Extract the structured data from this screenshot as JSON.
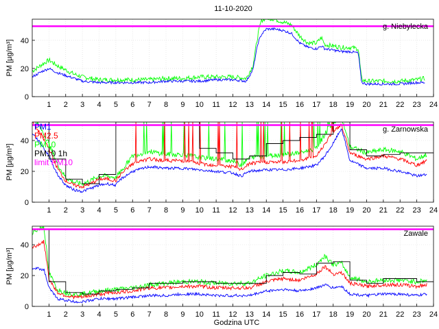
{
  "title": "11-10-2020",
  "xlabel": "Godzina UTC",
  "ylabel": "PM [µg/m³]",
  "colors": {
    "pm1": "#0000ff",
    "pm25": "#ff0000",
    "pm10": "#00ff00",
    "pm10_1h": "#000000",
    "limit": "#ff00ff"
  },
  "chart_data": [
    {
      "type": "line",
      "station": "g. Niebylecka",
      "xlim": [
        0,
        24
      ],
      "ylim": [
        0,
        55
      ],
      "xticks": [
        1,
        2,
        3,
        4,
        5,
        6,
        7,
        8,
        9,
        10,
        11,
        12,
        13,
        14,
        15,
        16,
        17,
        18,
        19,
        20,
        21,
        22,
        23,
        24
      ],
      "yticks": [
        0,
        20,
        40
      ],
      "limit_pm10": 50,
      "series": [
        {
          "name": "PM1",
          "key": "pm1",
          "x": [
            0,
            0.6,
            1,
            1.5,
            2,
            2.5,
            3,
            4,
            5,
            6,
            7,
            8,
            9,
            10,
            11,
            12,
            12.8,
            13.2,
            13.5,
            13.7,
            14,
            14.5,
            15,
            15.5,
            16,
            16.5,
            17,
            17.3,
            17.5,
            18,
            18.5,
            19,
            19.5,
            19.7,
            20,
            21,
            22,
            23,
            23.5
          ],
          "y": [
            14,
            18,
            20,
            17,
            15,
            13,
            11,
            10,
            10,
            10,
            10,
            11,
            11,
            11,
            12,
            12,
            11,
            19,
            38,
            44,
            48,
            48,
            47,
            45,
            38,
            35,
            34,
            36,
            34,
            33,
            32,
            32,
            31,
            10,
            9,
            9,
            9,
            10,
            10
          ]
        },
        {
          "name": "PM10",
          "key": "pm10",
          "x": [
            0,
            0.6,
            1,
            1.5,
            2,
            2.5,
            3,
            4,
            5,
            6,
            7,
            8,
            9,
            10,
            11,
            12,
            12.8,
            13.2,
            13.5,
            13.7,
            14,
            14.5,
            15,
            15.5,
            16,
            16.5,
            17,
            17.3,
            17.5,
            18,
            18.5,
            19,
            19.5,
            19.7,
            20,
            21,
            22,
            23,
            23.5
          ],
          "y": [
            18,
            23,
            26,
            22,
            19,
            16,
            14,
            12,
            12,
            12,
            12,
            13,
            13,
            14,
            14,
            14,
            13,
            22,
            44,
            54,
            56,
            55,
            53,
            51,
            43,
            38,
            38,
            42,
            37,
            36,
            35,
            35,
            34,
            12,
            11,
            11,
            11,
            12,
            13
          ]
        }
      ]
    },
    {
      "type": "line",
      "station": "g. Zarnowska",
      "xlim": [
        0,
        24
      ],
      "ylim": [
        0,
        52
      ],
      "xticks": [
        1,
        2,
        3,
        4,
        5,
        6,
        7,
        8,
        9,
        10,
        11,
        12,
        13,
        14,
        15,
        16,
        17,
        18,
        19,
        20,
        21,
        22,
        23,
        24
      ],
      "yticks": [
        0,
        20,
        40
      ],
      "limit_pm10": 50,
      "legend": [
        "PM1",
        "PM2.5",
        "PM10",
        "PM10 1h",
        "limit PM10"
      ],
      "series": [
        {
          "name": "PM1",
          "key": "pm1",
          "x": [
            0,
            0.5,
            1,
            1.5,
            2,
            2.5,
            3,
            3.5,
            4,
            4.5,
            5,
            5.3,
            6,
            7,
            8,
            9,
            10,
            11,
            12,
            12.5,
            13,
            14,
            15,
            16,
            17,
            17.5,
            18,
            18.5,
            19,
            20,
            21,
            22,
            23,
            23.6
          ],
          "y": [
            45,
            38,
            30,
            18,
            11,
            8,
            7,
            9,
            11,
            12,
            11,
            15,
            20,
            23,
            22,
            22,
            21,
            20,
            19,
            17,
            20,
            21,
            21,
            22,
            24,
            30,
            38,
            48,
            27,
            22,
            22,
            20,
            17,
            18
          ]
        },
        {
          "name": "PM2.5",
          "key": "pm25",
          "x": [
            0,
            0.5,
            1,
            1.5,
            2,
            2.5,
            3,
            3.5,
            4,
            4.5,
            5,
            5.3,
            6,
            7,
            8,
            9,
            10,
            11,
            12,
            12.5,
            13,
            14,
            15,
            16,
            17,
            17.5,
            18,
            18.5,
            19,
            20,
            21,
            22,
            23,
            23.6
          ],
          "y": [
            52,
            44,
            35,
            22,
            14,
            11,
            10,
            12,
            15,
            15,
            14,
            18,
            25,
            28,
            27,
            27,
            25,
            24,
            23,
            21,
            25,
            26,
            26,
            27,
            30,
            38,
            46,
            50,
            32,
            28,
            30,
            28,
            24,
            27
          ]
        },
        {
          "name": "PM10",
          "key": "pm10",
          "x": [
            0,
            0.5,
            1,
            1.5,
            2,
            2.5,
            3,
            3.5,
            4,
            4.5,
            5,
            5.3,
            6,
            7,
            8,
            9,
            10,
            11,
            12,
            12.5,
            13,
            14,
            15,
            16,
            17,
            17.5,
            18,
            18.5,
            19,
            20,
            21,
            22,
            23,
            23.6
          ],
          "y": [
            56,
            48,
            38,
            25,
            16,
            13,
            12,
            14,
            17,
            17,
            16,
            20,
            30,
            33,
            31,
            31,
            29,
            28,
            27,
            24,
            29,
            30,
            31,
            32,
            35,
            44,
            52,
            55,
            36,
            32,
            34,
            33,
            28,
            31
          ]
        },
        {
          "name": "PM10 1h",
          "key": "pm10_1h",
          "step": true,
          "x": [
            0,
            1,
            2,
            3,
            4,
            5,
            6,
            7,
            8,
            9,
            10,
            11,
            12,
            13,
            14,
            15,
            16,
            17,
            18,
            19,
            20,
            21,
            22,
            23
          ],
          "y": [
            52,
            28,
            15,
            12,
            18,
            52,
            52,
            52,
            52,
            52,
            35,
            32,
            28,
            30,
            38,
            40,
            42,
            44,
            52,
            34,
            30,
            31,
            32,
            32
          ]
        }
      ]
    },
    {
      "type": "line",
      "station": "Zawale",
      "xlim": [
        0,
        24
      ],
      "ylim": [
        0,
        52
      ],
      "xticks": [
        1,
        2,
        3,
        4,
        5,
        6,
        7,
        8,
        9,
        10,
        11,
        12,
        13,
        14,
        15,
        16,
        17,
        18,
        19,
        20,
        21,
        22,
        23,
        24
      ],
      "yticks": [
        0,
        20,
        40
      ],
      "limit_pm10": 50,
      "series": [
        {
          "name": "PM1",
          "key": "pm1",
          "x": [
            0,
            0.7,
            1,
            1.5,
            2,
            2.5,
            3,
            3.5,
            4,
            5,
            6,
            7,
            8,
            9,
            10,
            11,
            12,
            13,
            14,
            15,
            16,
            17,
            17.5,
            18,
            18.5,
            19,
            20,
            21,
            22,
            23,
            23.6
          ],
          "y": [
            25,
            24,
            12,
            5,
            4,
            3,
            3,
            4,
            5,
            5,
            6,
            7,
            7,
            8,
            8,
            7,
            7,
            7,
            10,
            11,
            10,
            12,
            14,
            12,
            13,
            8,
            7,
            8,
            8,
            7,
            8
          ]
        },
        {
          "name": "PM2.5",
          "key": "pm25",
          "x": [
            0,
            0.7,
            1,
            1.5,
            2,
            2.5,
            3,
            3.5,
            4,
            5,
            6,
            7,
            8,
            9,
            10,
            11,
            12,
            13,
            14,
            15,
            16,
            17,
            17.5,
            18,
            18.5,
            19,
            20,
            21,
            22,
            23,
            23.6
          ],
          "y": [
            38,
            42,
            18,
            9,
            7,
            6,
            6,
            7,
            8,
            9,
            10,
            12,
            12,
            13,
            13,
            12,
            12,
            12,
            16,
            18,
            17,
            21,
            26,
            21,
            22,
            15,
            13,
            14,
            14,
            13,
            14
          ]
        },
        {
          "name": "PM10",
          "key": "pm10",
          "x": [
            0,
            0.7,
            1,
            1.5,
            2,
            2.5,
            3,
            3.5,
            4,
            5,
            6,
            7,
            8,
            9,
            10,
            11,
            12,
            13,
            14,
            15,
            16,
            17,
            17.5,
            18,
            18.5,
            19,
            20,
            21,
            22,
            23,
            23.6
          ],
          "y": [
            48,
            52,
            22,
            11,
            9,
            8,
            8,
            9,
            10,
            11,
            12,
            14,
            15,
            16,
            16,
            15,
            15,
            15,
            20,
            23,
            22,
            27,
            33,
            27,
            28,
            19,
            16,
            17,
            17,
            16,
            17
          ]
        },
        {
          "name": "PM10 1h",
          "key": "pm10_1h",
          "step": true,
          "x": [
            0,
            1,
            2,
            3,
            4,
            5,
            6,
            7,
            8,
            9,
            10,
            11,
            12,
            13,
            14,
            15,
            16,
            17,
            18,
            19,
            20,
            21,
            22,
            23
          ],
          "y": [
            50,
            16,
            9,
            8,
            10,
            11,
            12,
            15,
            15,
            16,
            16,
            15,
            15,
            15,
            20,
            22,
            21,
            28,
            29,
            17,
            15,
            18,
            18,
            16
          ]
        }
      ]
    }
  ]
}
